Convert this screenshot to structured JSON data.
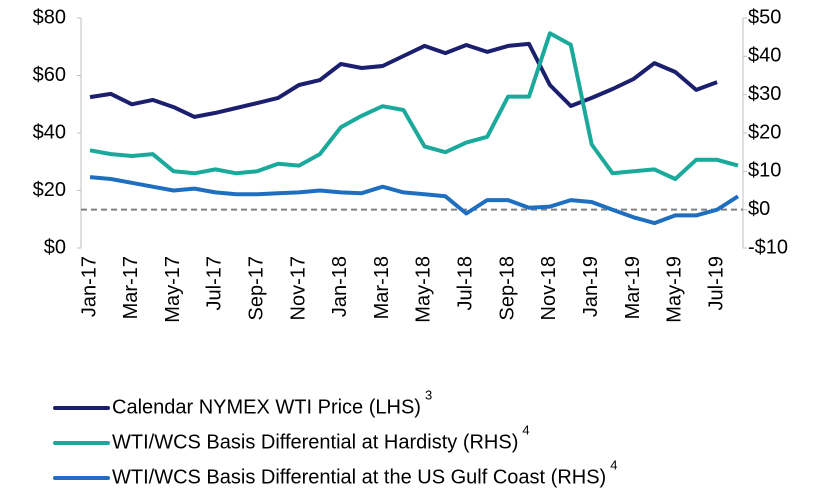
{
  "chart_data": {
    "type": "line",
    "categories": [
      "Jan-17",
      null,
      "Mar-17",
      null,
      "May-17",
      null,
      "Jul-17",
      null,
      "Sep-17",
      null,
      "Nov-17",
      null,
      "Jan-18",
      null,
      "Mar-18",
      null,
      "May-18",
      null,
      "Jul-18",
      null,
      "Sep-18",
      null,
      "Nov-18",
      null,
      "Jan-19",
      null,
      "Mar-19",
      null,
      "May-19",
      null,
      "Jul-19",
      null
    ],
    "series": [
      {
        "name": "Calendar NYMEX WTI Price (LHS)",
        "note": "3",
        "color": "#1b1f6e",
        "axis": "y",
        "values": [
          52.5,
          53.6,
          50,
          51.5,
          49,
          45.6,
          47,
          48.7,
          50.4,
          52.2,
          56.7,
          58.4,
          64,
          62.6,
          63.3,
          66.8,
          70.3,
          67.8,
          70.6,
          68.2,
          70.3,
          71,
          56.7,
          49.4,
          52.2,
          55.3,
          58.8,
          64.3,
          61.2,
          55,
          57.7,
          null
        ]
      },
      {
        "name": "WTI/WCS Basis Differential at Hardisty (RHS)",
        "note": "4",
        "color": "#1aa99b",
        "axis": "y2",
        "values": [
          15.5,
          14.5,
          14,
          14.5,
          10,
          9.5,
          10.5,
          9.5,
          10,
          12,
          11.5,
          14.5,
          21.5,
          24.5,
          27,
          26,
          16.5,
          15,
          17.5,
          19,
          29.5,
          29.5,
          46,
          43,
          17,
          9.5,
          10,
          10.5,
          8,
          13,
          13,
          11.5
        ]
      },
      {
        "name": "WTI/WCS Basis Differential at the US Gulf Coast (RHS)",
        "note": "4",
        "color": "#1f6fc1",
        "axis": "y2",
        "values": [
          8.5,
          8,
          7,
          6,
          5,
          5.5,
          4.5,
          4,
          4,
          4.3,
          4.5,
          5,
          4.5,
          4.3,
          6,
          4.5,
          4,
          3.5,
          -1,
          2.5,
          2.5,
          0.5,
          0.8,
          2.5,
          2,
          0,
          -2,
          -3.5,
          -1.5,
          -1.5,
          0,
          3.5
        ]
      }
    ],
    "ylim": [
      0,
      80
    ],
    "yticks": [
      {
        "value": 0,
        "label": "$0"
      },
      {
        "value": 20,
        "label": "$20"
      },
      {
        "value": 40,
        "label": "$40"
      },
      {
        "value": 60,
        "label": "$60"
      },
      {
        "value": 80,
        "label": "$80"
      }
    ],
    "y2lim": [
      -10,
      50
    ],
    "y2ticks": [
      {
        "value": -10,
        "label": "-$10"
      },
      {
        "value": 0,
        "label": "$0"
      },
      {
        "value": 10,
        "label": "$10"
      },
      {
        "value": 20,
        "label": "$20"
      },
      {
        "value": 30,
        "label": "$30"
      },
      {
        "value": 40,
        "label": "$40"
      },
      {
        "value": 50,
        "label": "$50"
      }
    ],
    "y2_refline": 0,
    "grid": false
  }
}
